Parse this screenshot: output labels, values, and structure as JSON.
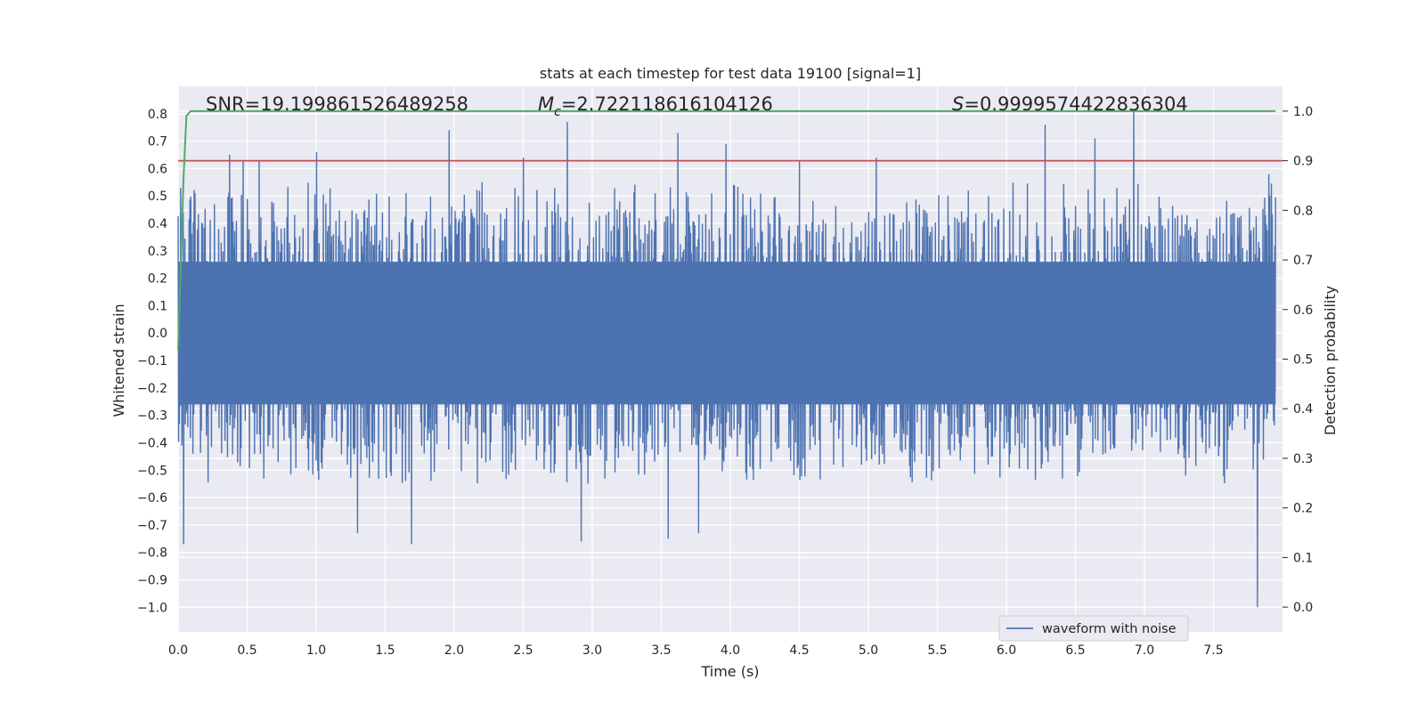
{
  "chart_data": {
    "type": "line",
    "title": "stats at each timestep for test data 19100 [signal=1]",
    "xlabel": "Time (s)",
    "ylabel": "Whitened strain",
    "ylabel_right": "Detection probability",
    "xlim": [
      0.0,
      8.0
    ],
    "ylim": [
      -1.09,
      0.9
    ],
    "ylim_right": [
      -0.05,
      1.05
    ],
    "x_ticks": [
      "0.0",
      "0.5",
      "1.0",
      "1.5",
      "2.0",
      "2.5",
      "3.0",
      "3.5",
      "4.0",
      "4.5",
      "5.0",
      "5.5",
      "6.0",
      "6.5",
      "7.0",
      "7.5"
    ],
    "y_ticks": [
      "0.8",
      "0.7",
      "0.6",
      "0.5",
      "0.4",
      "0.3",
      "0.2",
      "0.1",
      "0.0",
      "−0.1",
      "−0.2",
      "−0.3",
      "−0.4",
      "−0.5",
      "−0.6",
      "−0.7",
      "−0.8",
      "−0.9",
      "−1.0"
    ],
    "y_right_ticks": [
      "1.0",
      "0.9",
      "0.8",
      "0.7",
      "0.6",
      "0.5",
      "0.4",
      "0.3",
      "0.2",
      "0.1",
      "0.0"
    ],
    "grid": true,
    "legend_position": "lower right",
    "annotations": {
      "snr": "SNR=19.199861526489258",
      "mc_symbol": "M",
      "mc_sub": "c",
      "mc_value": "=2.722118616104126",
      "s_symbol": "S",
      "s_value": "=0.9999574422836304"
    },
    "series": [
      {
        "name": "waveform with noise",
        "axis": "left",
        "color": "#4c72b0",
        "envelope": {
          "typical_upper": 0.45,
          "typical_lower": -0.45,
          "core_upper": 0.26,
          "core_lower": -0.26
        },
        "peaks": [
          [
            0.02,
            0.53
          ],
          [
            0.04,
            -0.77
          ],
          [
            0.37,
            0.65
          ],
          [
            0.47,
            0.63
          ],
          [
            0.59,
            0.63
          ],
          [
            1.0,
            0.66
          ],
          [
            1.3,
            -0.73
          ],
          [
            1.69,
            -0.77
          ],
          [
            1.96,
            0.74
          ],
          [
            2.5,
            0.64
          ],
          [
            2.82,
            0.77
          ],
          [
            2.92,
            -0.76
          ],
          [
            3.55,
            -0.75
          ],
          [
            3.62,
            0.73
          ],
          [
            3.77,
            -0.73
          ],
          [
            3.97,
            0.69
          ],
          [
            4.5,
            0.63
          ],
          [
            5.06,
            0.64
          ],
          [
            6.28,
            0.76
          ],
          [
            6.64,
            0.71
          ],
          [
            6.92,
            0.81
          ],
          [
            7.82,
            -1.0
          ],
          [
            7.9,
            0.58
          ]
        ]
      },
      {
        "name": "",
        "axis": "right",
        "color": "#55a868",
        "x": [
          0.0,
          0.02,
          0.04,
          0.06,
          0.09,
          0.13,
          7.95
        ],
        "y": [
          0.52,
          0.7,
          0.87,
          0.99,
          1.0,
          1.0,
          1.0
        ]
      },
      {
        "name": "",
        "axis": "right",
        "color": "#c44e52",
        "x": [
          0.0,
          8.0
        ],
        "y": [
          0.9,
          0.9
        ]
      }
    ]
  }
}
